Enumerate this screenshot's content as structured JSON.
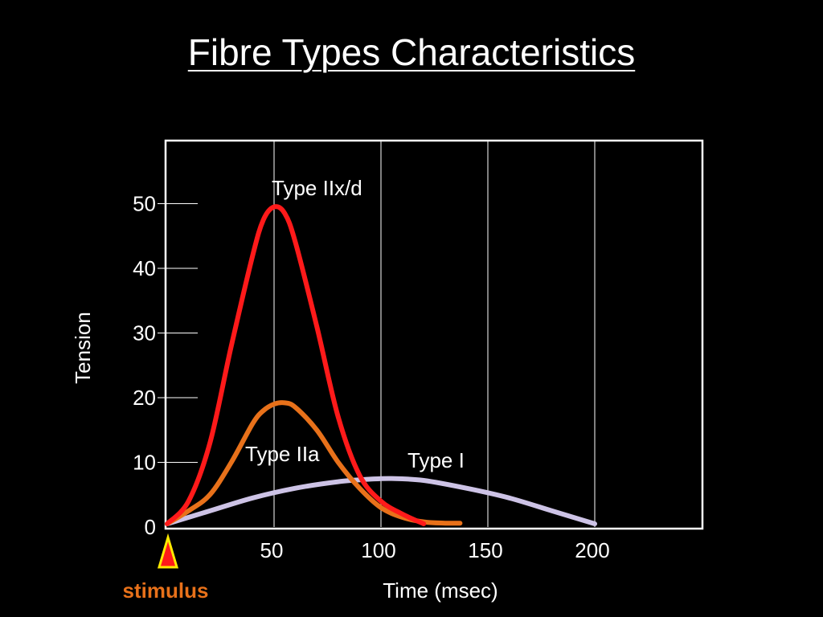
{
  "slide": {
    "title": "Fibre Types Characteristics"
  },
  "colors": {
    "background": "#000000",
    "axes": "#ffffff",
    "type_iix_d": "#ff1a1a",
    "type_iia": "#e8711a",
    "type_i": "#cdc3e6",
    "stimulus_text": "#e8711a",
    "stimulus_marker_fill": "#ff1a1a",
    "stimulus_marker_stroke": "#ffea00"
  },
  "chart_data": {
    "type": "line",
    "xlabel": "Time (msec)",
    "ylabel": "Tension",
    "xlim": [
      0,
      250
    ],
    "ylim": [
      0,
      60
    ],
    "x_ticks": [
      50,
      100,
      150,
      200
    ],
    "y_ticks": [
      0,
      10,
      20,
      30,
      40,
      50
    ],
    "grid": "vertical lines at x ticks",
    "series": [
      {
        "name": "Type IIx/d",
        "color": "#ff1a1a",
        "points": [
          [
            0,
            0.5
          ],
          [
            10,
            4
          ],
          [
            20,
            13
          ],
          [
            30,
            28
          ],
          [
            40,
            42
          ],
          [
            45,
            47.5
          ],
          [
            50,
            49.5
          ],
          [
            55,
            48.5
          ],
          [
            60,
            44
          ],
          [
            70,
            31
          ],
          [
            80,
            17
          ],
          [
            90,
            8
          ],
          [
            100,
            4
          ],
          [
            110,
            2
          ],
          [
            120,
            0.5
          ]
        ]
      },
      {
        "name": "Type IIa",
        "color": "#e8711a",
        "points": [
          [
            0,
            0.5
          ],
          [
            10,
            2.5
          ],
          [
            20,
            5
          ],
          [
            30,
            10
          ],
          [
            40,
            16
          ],
          [
            45,
            18
          ],
          [
            50,
            19
          ],
          [
            55,
            19.2
          ],
          [
            60,
            18.5
          ],
          [
            70,
            15
          ],
          [
            80,
            10
          ],
          [
            90,
            6
          ],
          [
            100,
            3
          ],
          [
            110,
            1.5
          ],
          [
            120,
            0.8
          ],
          [
            130,
            0.6
          ],
          [
            137,
            0.6
          ]
        ]
      },
      {
        "name": "Type I",
        "color": "#cdc3e6",
        "points": [
          [
            0,
            0.5
          ],
          [
            20,
            2.5
          ],
          [
            40,
            4.5
          ],
          [
            60,
            6
          ],
          [
            80,
            7
          ],
          [
            95,
            7.4
          ],
          [
            105,
            7.5
          ],
          [
            120,
            7.2
          ],
          [
            140,
            6
          ],
          [
            160,
            4.5
          ],
          [
            180,
            2.5
          ],
          [
            200,
            0.5
          ]
        ]
      }
    ],
    "annotations": [
      {
        "text": "Type IIx/d",
        "series": "Type IIx/d"
      },
      {
        "text": "Type IIa",
        "series": "Type IIa"
      },
      {
        "text": "Type I",
        "series": "Type I"
      }
    ]
  },
  "stimulus": {
    "label": "stimulus"
  }
}
